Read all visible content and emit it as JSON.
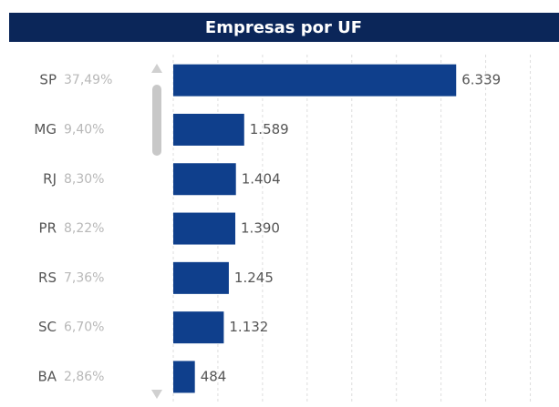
{
  "chart_data": {
    "type": "bar",
    "orientation": "horizontal",
    "title": "Empresas por UF",
    "categories": [
      "SP",
      "MG",
      "RJ",
      "PR",
      "RS",
      "SC",
      "BA"
    ],
    "share_labels": [
      "37,49%",
      "9,40%",
      "8,30%",
      "8,22%",
      "7,36%",
      "6,70%",
      "2,86%"
    ],
    "values": [
      6339,
      1589,
      1404,
      1390,
      1245,
      1132,
      484
    ],
    "value_labels": [
      "6.339",
      "1.589",
      "1.404",
      "1.390",
      "1.245",
      "1.132",
      "484"
    ],
    "color": "#0f3f8c",
    "xlim": [
      0,
      8500
    ],
    "xticks": [
      0,
      1000,
      2000,
      3000,
      4000,
      5000,
      6000,
      7000,
      8000
    ],
    "grid": true
  }
}
